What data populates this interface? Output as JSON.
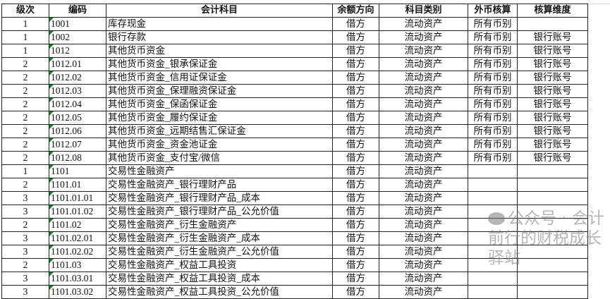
{
  "columns": [
    "级次",
    "编码",
    "会计科目",
    "余额方向",
    "科目类别",
    "外币核算",
    "核算维度"
  ],
  "rows": [
    [
      "1",
      "1001",
      "库存现金",
      "借方",
      "流动资产",
      "所有币别",
      ""
    ],
    [
      "1",
      "1002",
      "银行存款",
      "借方",
      "流动资产",
      "所有币别",
      "银行账号"
    ],
    [
      "1",
      "1012",
      "其他货币资金",
      "借方",
      "流动资产",
      "所有币别",
      "银行账号"
    ],
    [
      "2",
      "1012.01",
      "其他货币资金_银承保证金",
      "借方",
      "流动资产",
      "所有币别",
      "银行账号"
    ],
    [
      "2",
      "1012.02",
      "其他货币资金_信用证保证金",
      "借方",
      "流动资产",
      "所有币别",
      "银行账号"
    ],
    [
      "2",
      "1012.03",
      "其他货币资金_保理融资保证金",
      "借方",
      "流动资产",
      "所有币别",
      "银行账号"
    ],
    [
      "2",
      "1012.04",
      "其他货币资金_保函保证金",
      "借方",
      "流动资产",
      "所有币别",
      "银行账号"
    ],
    [
      "2",
      "1012.05",
      "其他货币资金_履约保证金",
      "借方",
      "流动资产",
      "所有币别",
      "银行账号"
    ],
    [
      "2",
      "1012.06",
      "其他货币资金_远期结售汇保证金",
      "借方",
      "流动资产",
      "所有币别",
      "银行账号"
    ],
    [
      "2",
      "1012.07",
      "其他货币资金_资金池证金",
      "借方",
      "流动资产",
      "所有币别",
      "银行账号"
    ],
    [
      "2",
      "1012.08",
      "其他货币资金_支付宝/微信",
      "借方",
      "流动资产",
      "所有币别",
      "银行账号"
    ],
    [
      "1",
      "1101",
      "交易性金融资产",
      "借方",
      "流动资产",
      "",
      ""
    ],
    [
      "2",
      "1101.01",
      "交易性金融资产_银行理财产品",
      "借方",
      "流动资产",
      "",
      ""
    ],
    [
      "3",
      "1101.01.01",
      "交易性金融资产_银行理财产品_成本",
      "借方",
      "流动资产",
      "",
      ""
    ],
    [
      "3",
      "1101.01.02",
      "交易性金融资产_银行理财产品_公允价值",
      "借方",
      "流动资产",
      "",
      ""
    ],
    [
      "2",
      "1101.02",
      "交易性金融资产_衍生金融资产",
      "借方",
      "流动资产",
      "",
      ""
    ],
    [
      "3",
      "1101.02.01",
      "交易性金融资产_衍生金融资产_成本",
      "借方",
      "流动资产",
      "",
      ""
    ],
    [
      "3",
      "1101.02.02",
      "交易性金融资产_衍生金融资产_公允价值",
      "借方",
      "流动资产",
      "",
      ""
    ],
    [
      "2",
      "1101.03",
      "交易性金融资产_权益工具投资",
      "借方",
      "流动资产",
      "",
      ""
    ],
    [
      "3",
      "1101.03.01",
      "交易性金融资产_权益工具投资_成本",
      "借方",
      "流动资产",
      "",
      ""
    ],
    [
      "3",
      "1101.03.02",
      "交易性金融资产_权益工具投资_公允价值",
      "借方",
      "流动资产",
      "",
      ""
    ]
  ],
  "watermark": "公众号 · 会计前行的财税成长驿站",
  "colors": {
    "comment_marker": "#1e7b34"
  }
}
